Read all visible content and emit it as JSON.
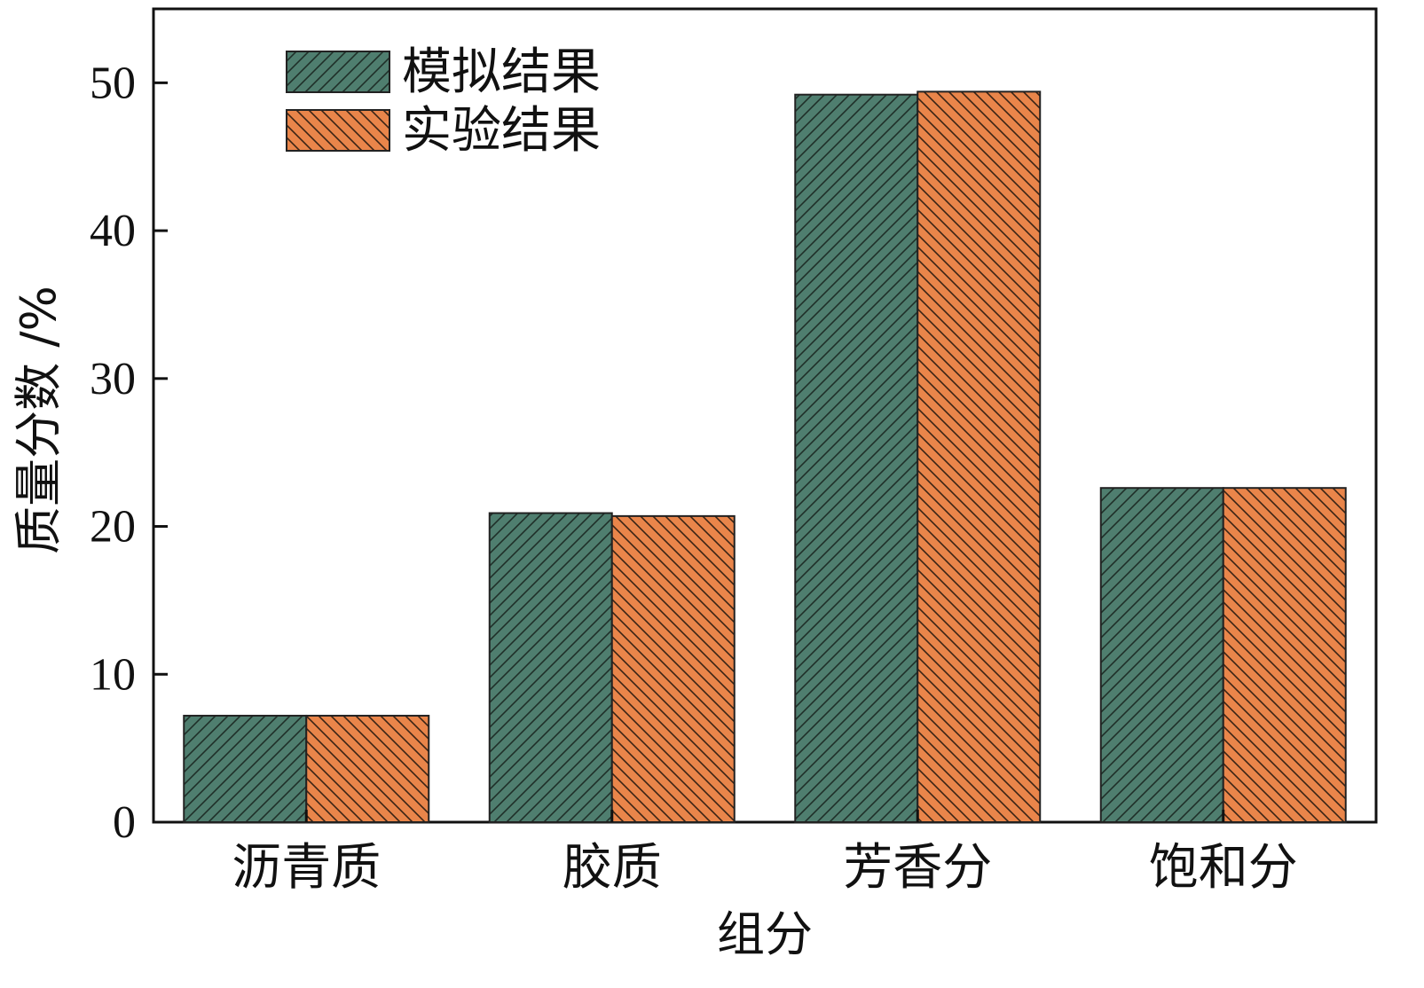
{
  "chart_data": {
    "type": "bar",
    "title": "",
    "xlabel": "组分",
    "ylabel": "质量分数 /%",
    "ylim": [
      0,
      55
    ],
    "yticks": [
      0,
      10,
      20,
      30,
      40,
      50
    ],
    "categories": [
      "沥青质",
      "胶质",
      "芳香分",
      "饱和分"
    ],
    "series": [
      {
        "name": "模拟结果",
        "values": [
          7.2,
          20.9,
          49.2,
          22.6
        ],
        "color": "#4f7e6f",
        "hatch": "forward"
      },
      {
        "name": "实验结果",
        "values": [
          7.2,
          20.7,
          49.4,
          22.6
        ],
        "color": "#e9854a",
        "hatch": "backward"
      }
    ],
    "legend_position": "top-left",
    "grid": false
  }
}
